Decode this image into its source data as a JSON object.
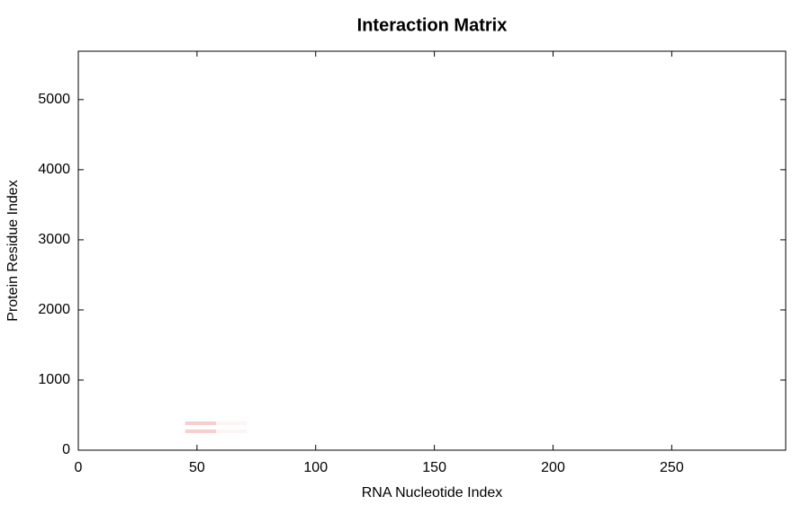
{
  "chart_data": {
    "type": "heatmap",
    "title": "Interaction Matrix",
    "x_label": "RNA Nucleotide Index",
    "y_label": "Protein Residue Index",
    "xlim": [
      0,
      298
    ],
    "ylim": [
      0,
      5690
    ],
    "xticks": [
      0,
      50,
      100,
      150,
      200,
      250
    ],
    "yticks": [
      0,
      1000,
      2000,
      3000,
      4000,
      5000
    ],
    "color": "#e03a3a",
    "cells": [
      {
        "x": [
          45,
          58
        ],
        "y": [
          359,
          410
        ],
        "value": 0.25
      },
      {
        "x": [
          45,
          58
        ],
        "y": [
          244,
          295
        ],
        "value": 0.25
      },
      {
        "x": [
          58,
          71
        ],
        "y": [
          359,
          410
        ],
        "value": 0.05
      },
      {
        "x": [
          58,
          71
        ],
        "y": [
          244,
          295
        ],
        "value": 0.05
      }
    ]
  }
}
